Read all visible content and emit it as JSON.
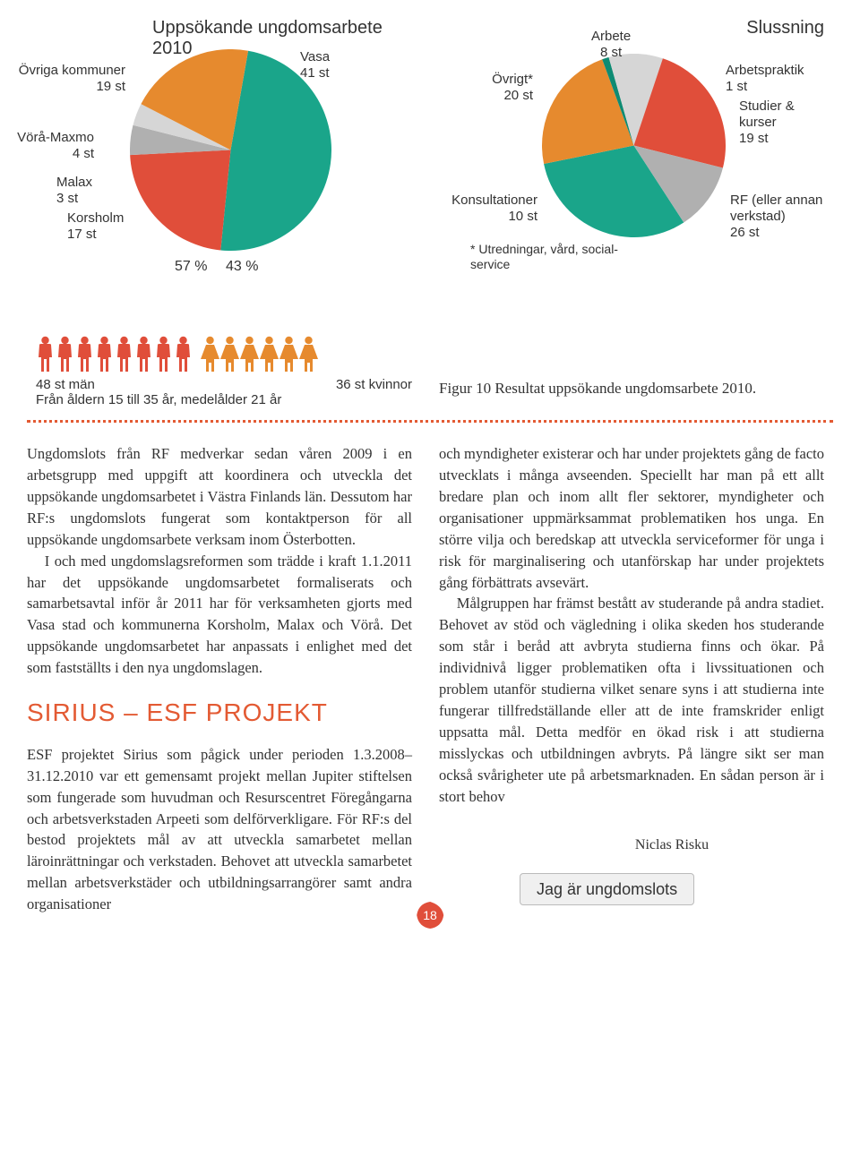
{
  "colors": {
    "orange": "#e68a2e",
    "red": "#e04e3a",
    "teal": "#1aa58a",
    "grey": "#b0b0b0",
    "lightgrey": "#d6d6d6",
    "darkteal": "#0e8b73",
    "text": "#333333",
    "accent": "#e35a33"
  },
  "left_pie": {
    "title": "Uppsökande ungdomsarbete 2010",
    "type": "pie",
    "diameter": 225,
    "slices": [
      {
        "label": "Vasa",
        "value": 41,
        "unit": "st",
        "color": "#1aa58a"
      },
      {
        "label": "Övriga kommuner",
        "value": 19,
        "unit": "st",
        "color": "#e04e3a"
      },
      {
        "label": "Vörå-Maxmo",
        "value": 4,
        "unit": "st",
        "color": "#b0b0b0"
      },
      {
        "label": "Malax",
        "value": 3,
        "unit": "st",
        "color": "#d6d6d6"
      },
      {
        "label": "Korsholm",
        "value": 17,
        "unit": "st",
        "color": "#e68a2e"
      }
    ],
    "percent_left": "57 %",
    "percent_right": "43 %",
    "men_count": 8,
    "women_count": 6,
    "men_color": "#e04e3a",
    "women_color": "#e68a2e",
    "caption_left": "48 st män",
    "caption_right": "36 st kvinnor",
    "sub_caption": "Från åldern 15 till 35 år, medelålder 21 år"
  },
  "right_pie": {
    "title": "Slussning",
    "type": "pie",
    "diameter": 205,
    "slices": [
      {
        "label": "RF (eller annan verkstad)",
        "value": 26,
        "unit": "st",
        "color": "#1aa58a"
      },
      {
        "label": "Studier & kurser",
        "value": 19,
        "unit": "st",
        "color": "#e68a2e"
      },
      {
        "label": "Arbetspraktik",
        "value": 1,
        "unit": "st",
        "color": "#0e8b73"
      },
      {
        "label": "Arbete",
        "value": 8,
        "unit": "st",
        "color": "#d6d6d6"
      },
      {
        "label": "Övrigt*",
        "value": 20,
        "unit": "st",
        "color": "#e04e3a"
      },
      {
        "label": "Konsultationer",
        "value": 10,
        "unit": "st",
        "color": "#b0b0b0"
      }
    ],
    "footnote": "* Utredningar, vård, social-\nservice"
  },
  "figur": "Figur 10 Resultat uppsökande ungdomsarbete 2010.",
  "body_left": [
    "Ungdomslots från RF medverkar sedan våren 2009 i en arbetsgrupp med uppgift att koordinera och utveckla det uppsökande ungdomsarbetet i Västra Finlands län. Dessutom har RF:s ungdomslots fungerat som kontaktperson för all uppsökande ungdomsarbete verksam inom Österbotten.",
    "I och med ungdomslagsreformen som trädde i kraft 1.1.2011 har det uppsökande ungdomsarbetet formaliserats och samarbetsavtal inför år 2011 har för verksamheten gjorts med Vasa stad och kommunerna Korsholm, Malax och Vörå. Det uppsökande ungdomsarbetet har anpassats i enlighet med det som fastställts i den nya ungdomslagen."
  ],
  "heading_left": "SIRIUS – ESF PROJEKT",
  "body_left_2": [
    "ESF projektet Sirius som pågick under perioden 1.3.2008–31.12.2010 var ett gemensamt projekt mellan Jupiter stiftelsen som fungerade som huvudman och Resurscentret Föregångarna och arbetsverkstaden Arpeeti som delförverkligare. För RF:s del bestod projektets mål av att utveckla samarbetet mellan läroinrättningar och verkstaden. Behovet att utveckla samarbetet mellan arbetsverkstäder och utbildningsarrangörer samt andra organisationer"
  ],
  "body_right": [
    "och myndigheter existerar och har under projektets gång de facto utvecklats i många avseenden. Speciellt har man på ett allt bredare plan och inom allt fler sektorer, myndigheter och organisationer uppmärksammat problematiken hos unga. En större vilja och beredskap att utveckla serviceformer för unga i risk för marginalisering och utanförskap har under projektets gång förbättrats avsevärt.",
    "Målgruppen har främst bestått av studerande på andra stadiet. Behovet av stöd och vägledning i olika skeden hos studerande som står i beråd att avbryta studierna finns och ökar. På individnivå ligger problematiken ofta i livssituationen och problem utanför studierna vilket senare syns i att studierna inte fungerar tillfredställande eller att de inte framskrider enligt uppsatta mål. Detta medför en ökad risk i att studierna misslyckas och utbildningen avbryts. På längre sikt ser man också svårigheter ute på arbetsmarknaden. En sådan person är i stort behov"
  ],
  "person_name": "Niclas Risku",
  "person_tag": "Jag är ungdomslots",
  "page_number": "18"
}
